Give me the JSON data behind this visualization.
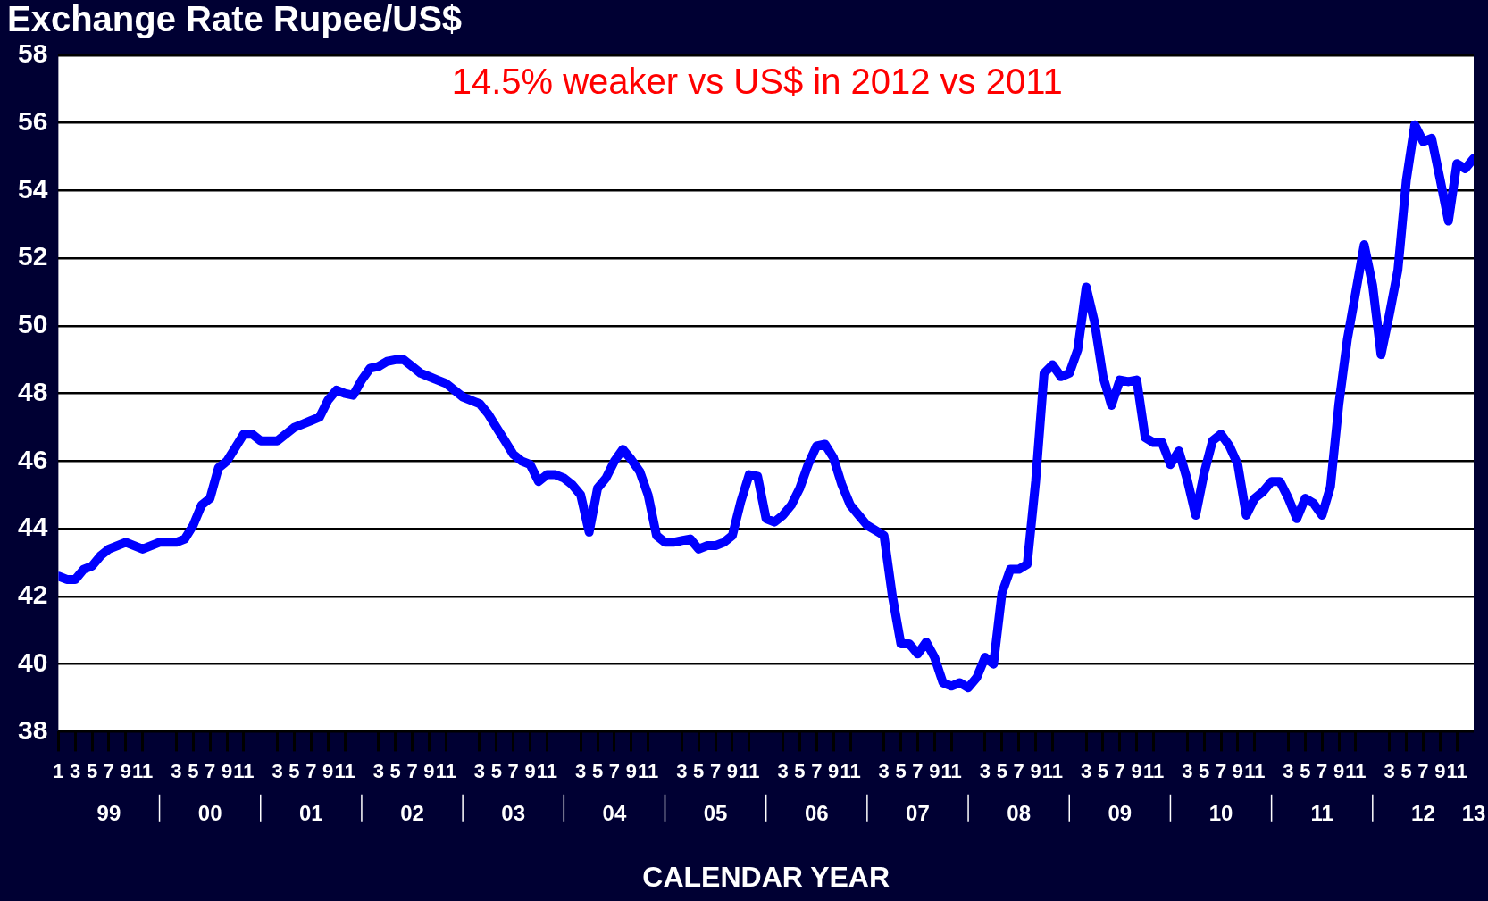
{
  "chart_data": {
    "type": "line",
    "title": "Exchange Rate Rupee/US$",
    "xlabel": "CALENDAR YEAR",
    "annotations": [
      "14.5% weaker vs US$ in 2012 vs 2011"
    ],
    "x": [
      "1999-01",
      "1999-02",
      "1999-03",
      "1999-04",
      "1999-05",
      "1999-06",
      "1999-07",
      "1999-08",
      "1999-09",
      "1999-10",
      "1999-11",
      "1999-12",
      "2000-01",
      "2000-02",
      "2000-03",
      "2000-04",
      "2000-05",
      "2000-06",
      "2000-07",
      "2000-08",
      "2000-09",
      "2000-10",
      "2000-11",
      "2000-12",
      "2001-01",
      "2001-02",
      "2001-03",
      "2001-04",
      "2001-05",
      "2001-06",
      "2001-07",
      "2001-08",
      "2001-09",
      "2001-10",
      "2001-11",
      "2001-12",
      "2002-01",
      "2002-02",
      "2002-03",
      "2002-04",
      "2002-05",
      "2002-06",
      "2002-07",
      "2002-08",
      "2002-09",
      "2002-10",
      "2002-11",
      "2002-12",
      "2003-01",
      "2003-02",
      "2003-03",
      "2003-04",
      "2003-05",
      "2003-06",
      "2003-07",
      "2003-08",
      "2003-09",
      "2003-10",
      "2003-11",
      "2003-12",
      "2004-01",
      "2004-02",
      "2004-03",
      "2004-04",
      "2004-05",
      "2004-06",
      "2004-07",
      "2004-08",
      "2004-09",
      "2004-10",
      "2004-11",
      "2004-12",
      "2005-01",
      "2005-02",
      "2005-03",
      "2005-04",
      "2005-05",
      "2005-06",
      "2005-07",
      "2005-08",
      "2005-09",
      "2005-10",
      "2005-11",
      "2005-12",
      "2006-01",
      "2006-02",
      "2006-03",
      "2006-04",
      "2006-05",
      "2006-06",
      "2006-07",
      "2006-08",
      "2006-09",
      "2006-10",
      "2006-11",
      "2006-12",
      "2007-01",
      "2007-02",
      "2007-03",
      "2007-04",
      "2007-05",
      "2007-06",
      "2007-07",
      "2007-08",
      "2007-09",
      "2007-10",
      "2007-11",
      "2007-12",
      "2008-01",
      "2008-02",
      "2008-03",
      "2008-04",
      "2008-05",
      "2008-06",
      "2008-07",
      "2008-08",
      "2008-09",
      "2008-10",
      "2008-11",
      "2008-12",
      "2009-01",
      "2009-02",
      "2009-03",
      "2009-04",
      "2009-05",
      "2009-06",
      "2009-07",
      "2009-08",
      "2009-09",
      "2009-10",
      "2009-11",
      "2009-12",
      "2010-01",
      "2010-02",
      "2010-03",
      "2010-04",
      "2010-05",
      "2010-06",
      "2010-07",
      "2010-08",
      "2010-09",
      "2010-10",
      "2010-11",
      "2010-12",
      "2011-01",
      "2011-02",
      "2011-03",
      "2011-04",
      "2011-05",
      "2011-06",
      "2011-07",
      "2011-08",
      "2011-09",
      "2011-10",
      "2011-11",
      "2011-12",
      "2012-01",
      "2012-02",
      "2012-03",
      "2012-04",
      "2012-05",
      "2012-06",
      "2012-07",
      "2012-08",
      "2012-09",
      "2012-10",
      "2012-11",
      "2012-12",
      "2013-01"
    ],
    "series": [
      {
        "color": "#0000ff",
        "values": [
          42.6,
          42.5,
          42.5,
          42.8,
          42.9,
          43.2,
          43.4,
          43.5,
          43.6,
          43.5,
          43.4,
          43.5,
          43.6,
          43.6,
          43.6,
          43.7,
          44.1,
          44.7,
          44.9,
          45.8,
          46.0,
          46.4,
          46.8,
          46.8,
          46.6,
          46.6,
          46.6,
          46.8,
          47.0,
          47.1,
          47.2,
          47.3,
          47.8,
          48.1,
          48.0,
          47.95,
          48.4,
          48.75,
          48.8,
          48.95,
          49.0,
          49.0,
          48.8,
          48.6,
          48.5,
          48.4,
          48.3,
          48.1,
          47.9,
          47.8,
          47.7,
          47.4,
          47.0,
          46.6,
          46.2,
          46.0,
          45.9,
          45.4,
          45.6,
          45.6,
          45.5,
          45.3,
          45.0,
          43.9,
          45.2,
          45.5,
          46.0,
          46.35,
          46.05,
          45.7,
          45.0,
          43.8,
          43.6,
          43.6,
          43.65,
          43.7,
          43.4,
          43.5,
          43.5,
          43.6,
          43.8,
          44.8,
          45.6,
          45.55,
          44.3,
          44.2,
          44.4,
          44.7,
          45.2,
          45.9,
          46.45,
          46.5,
          46.1,
          45.3,
          44.7,
          44.4,
          44.1,
          43.95,
          43.8,
          42.0,
          40.6,
          40.6,
          40.3,
          40.65,
          40.2,
          39.45,
          39.35,
          39.45,
          39.3,
          39.6,
          40.2,
          40.0,
          42.1,
          42.8,
          42.8,
          42.95,
          45.4,
          48.6,
          48.85,
          48.5,
          48.6,
          49.3,
          51.15,
          50.1,
          48.5,
          47.65,
          48.4,
          48.35,
          48.4,
          46.7,
          46.55,
          46.55,
          45.9,
          46.3,
          45.45,
          44.4,
          45.65,
          46.6,
          46.8,
          46.45,
          45.9,
          44.4,
          44.9,
          45.1,
          45.4,
          45.4,
          44.9,
          44.3,
          44.9,
          44.75,
          44.4,
          45.25,
          47.7,
          49.6,
          51.0,
          52.4,
          51.2,
          49.15,
          50.35,
          51.65,
          54.3,
          55.95,
          55.45,
          55.55,
          54.35,
          53.1,
          54.8,
          54.65,
          54.95
        ]
      }
    ],
    "xlim": [
      "1999-01",
      "2013-01"
    ],
    "xticks": [
      {
        "value": "1999-01",
        "label": "1"
      },
      {
        "value": "1999-03",
        "label": "3"
      },
      {
        "value": "1999-05",
        "label": "5"
      },
      {
        "value": "1999-07",
        "label": "7"
      },
      {
        "value": "1999-09",
        "label": "9"
      },
      {
        "value": "1999-11",
        "label": "11"
      },
      {
        "value": "2000-03",
        "label": "3"
      },
      {
        "value": "2000-05",
        "label": "5"
      },
      {
        "value": "2000-07",
        "label": "7"
      },
      {
        "value": "2000-09",
        "label": "9"
      },
      {
        "value": "2000-11",
        "label": "11"
      },
      {
        "value": "2001-03",
        "label": "3"
      },
      {
        "value": "2001-05",
        "label": "5"
      },
      {
        "value": "2001-07",
        "label": "7"
      },
      {
        "value": "2001-09",
        "label": "9"
      },
      {
        "value": "2001-11",
        "label": "11"
      },
      {
        "value": "2002-03",
        "label": "3"
      },
      {
        "value": "2002-05",
        "label": "5"
      },
      {
        "value": "2002-07",
        "label": "7"
      },
      {
        "value": "2002-09",
        "label": "9"
      },
      {
        "value": "2002-11",
        "label": "11"
      },
      {
        "value": "2003-03",
        "label": "3"
      },
      {
        "value": "2003-05",
        "label": "5"
      },
      {
        "value": "2003-07",
        "label": "7"
      },
      {
        "value": "2003-09",
        "label": "9"
      },
      {
        "value": "2003-11",
        "label": "11"
      },
      {
        "value": "2004-03",
        "label": "3"
      },
      {
        "value": "2004-05",
        "label": "5"
      },
      {
        "value": "2004-07",
        "label": "7"
      },
      {
        "value": "2004-09",
        "label": "9"
      },
      {
        "value": "2004-11",
        "label": "11"
      },
      {
        "value": "2005-03",
        "label": "3"
      },
      {
        "value": "2005-05",
        "label": "5"
      },
      {
        "value": "2005-07",
        "label": "7"
      },
      {
        "value": "2005-09",
        "label": "9"
      },
      {
        "value": "2005-11",
        "label": "11"
      },
      {
        "value": "2006-03",
        "label": "3"
      },
      {
        "value": "2006-05",
        "label": "5"
      },
      {
        "value": "2006-07",
        "label": "7"
      },
      {
        "value": "2006-09",
        "label": "9"
      },
      {
        "value": "2006-11",
        "label": "11"
      },
      {
        "value": "2007-03",
        "label": "3"
      },
      {
        "value": "2007-05",
        "label": "5"
      },
      {
        "value": "2007-07",
        "label": "7"
      },
      {
        "value": "2007-09",
        "label": "9"
      },
      {
        "value": "2007-11",
        "label": "11"
      },
      {
        "value": "2008-03",
        "label": "3"
      },
      {
        "value": "2008-05",
        "label": "5"
      },
      {
        "value": "2008-07",
        "label": "7"
      },
      {
        "value": "2008-09",
        "label": "9"
      },
      {
        "value": "2008-11",
        "label": "11"
      },
      {
        "value": "2009-03",
        "label": "3"
      },
      {
        "value": "2009-05",
        "label": "5"
      },
      {
        "value": "2009-07",
        "label": "7"
      },
      {
        "value": "2009-09",
        "label": "9"
      },
      {
        "value": "2009-11",
        "label": "11"
      },
      {
        "value": "2010-03",
        "label": "3"
      },
      {
        "value": "2010-05",
        "label": "5"
      },
      {
        "value": "2010-07",
        "label": "7"
      },
      {
        "value": "2010-09",
        "label": "9"
      },
      {
        "value": "2010-11",
        "label": "11"
      },
      {
        "value": "2011-03",
        "label": "3"
      },
      {
        "value": "2011-05",
        "label": "5"
      },
      {
        "value": "2011-07",
        "label": "7"
      },
      {
        "value": "2011-09",
        "label": "9"
      },
      {
        "value": "2011-11",
        "label": "11"
      },
      {
        "value": "2012-03",
        "label": "3"
      },
      {
        "value": "2012-05",
        "label": "5"
      },
      {
        "value": "2012-07",
        "label": "7"
      },
      {
        "value": "2012-09",
        "label": "9"
      },
      {
        "value": "2012-11",
        "label": "11"
      }
    ],
    "x2lim": [
      "1999-01",
      "2013-01"
    ],
    "x2ticks": [
      {
        "value": "1999-07",
        "label": "99"
      },
      {
        "value": "2000-07",
        "label": "00"
      },
      {
        "value": "2001-07",
        "label": "01"
      },
      {
        "value": "2002-07",
        "label": "02"
      },
      {
        "value": "2003-07",
        "label": "03"
      },
      {
        "value": "2004-07",
        "label": "04"
      },
      {
        "value": "2005-07",
        "label": "05"
      },
      {
        "value": "2006-07",
        "label": "06"
      },
      {
        "value": "2007-07",
        "label": "07"
      },
      {
        "value": "2008-07",
        "label": "08"
      },
      {
        "value": "2009-07",
        "label": "09"
      },
      {
        "value": "2010-07",
        "label": "10"
      },
      {
        "value": "2011-07",
        "label": "11"
      },
      {
        "value": "2012-07",
        "label": "12"
      },
      {
        "value": "2013-01",
        "label": "13"
      }
    ],
    "ylim": [
      38,
      58
    ],
    "yticks": [
      38,
      40,
      42,
      44,
      46,
      48,
      50,
      52,
      54,
      56,
      58
    ],
    "grid": "y",
    "legend": false,
    "marker": "none",
    "line_style": "solid"
  }
}
